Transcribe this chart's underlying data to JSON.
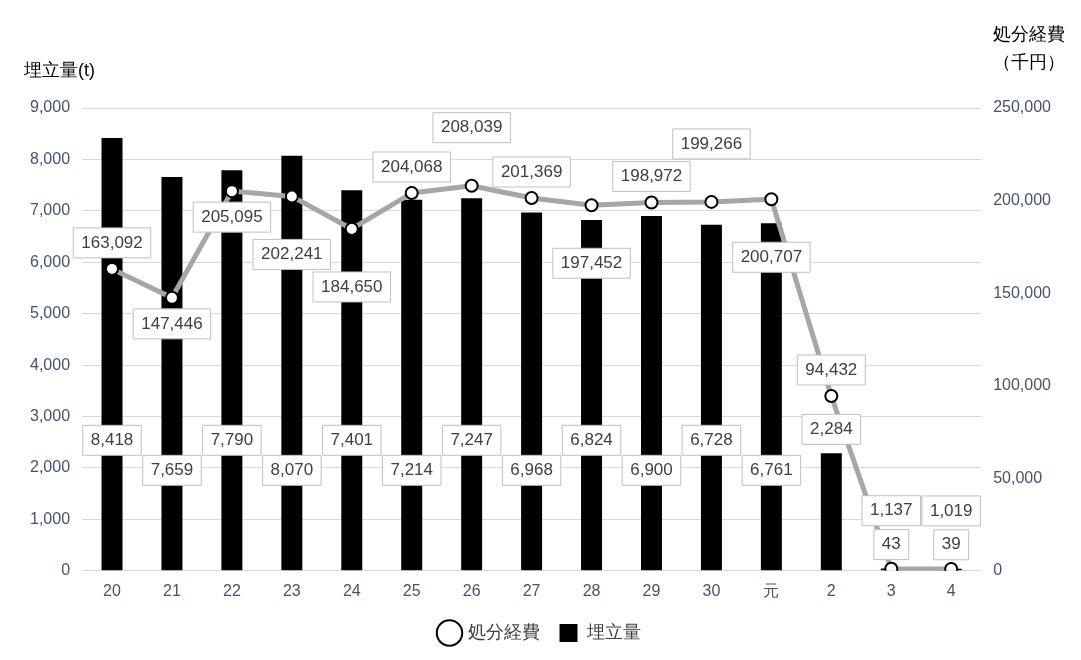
{
  "chart_data": {
    "type": "bar",
    "ylabel": "埋立量(t)",
    "y2label": "処分経費（千円）",
    "categories": [
      "20",
      "21",
      "22",
      "23",
      "24",
      "25",
      "26",
      "27",
      "28",
      "29",
      "30",
      "元",
      "2",
      "3",
      "4"
    ],
    "series": [
      {
        "name": "埋立量",
        "color": "#000000",
        "values": [
          8418,
          7659,
          7790,
          8070,
          7401,
          7214,
          7247,
          6968,
          6824,
          6900,
          6728,
          6761,
          2284,
          43,
          39
        ],
        "value_labels": [
          "8,418",
          "7,659",
          "7,790",
          "8,070",
          "7,401",
          "7,214",
          "7,247",
          "6,968",
          "6,824",
          "6,900",
          "6,728",
          "6,761",
          "2,284",
          "43",
          "39"
        ]
      },
      {
        "name": "処分経費",
        "type": "line",
        "axis": "y2",
        "color": "#a6a6a6",
        "marker": "circle",
        "values": [
          163092,
          147446,
          205095,
          202241,
          184650,
          204068,
          208039,
          201369,
          197452,
          198972,
          199266,
          200707,
          94432,
          1137,
          1019
        ],
        "value_labels": [
          "163,092",
          "147,446",
          "205,095",
          "202,241",
          "184,650",
          "204,068",
          "208,039",
          "201,369",
          "197,452",
          "198,972",
          "199,266",
          "200,707",
          "94,432",
          "1,137",
          "1,019"
        ]
      }
    ],
    "ylim": [
      0,
      9000
    ],
    "yticks": [
      0,
      {
        "value": 1000,
        "label": "1,000"
      },
      {
        "value": 2000,
        "label": "2,000"
      },
      {
        "value": 3000,
        "label": "3,000"
      },
      {
        "value": 4000,
        "label": "4,000"
      },
      {
        "value": 5000,
        "label": "5,000"
      },
      {
        "value": 6000,
        "label": "6,000"
      },
      {
        "value": 7000,
        "label": "7,000"
      },
      {
        "value": 8000,
        "label": "8,000"
      },
      {
        "value": 9000,
        "label": "9,000"
      }
    ],
    "y2lim": [
      0,
      250000
    ],
    "y2ticks": [
      0,
      {
        "value": 50000,
        "label": "50,000"
      },
      {
        "value": 100000,
        "label": "100,000"
      },
      {
        "value": 150000,
        "label": "150,000"
      },
      {
        "value": 200000,
        "label": "200,000"
      },
      {
        "value": 250000,
        "label": "250,000"
      }
    ],
    "grid": "y",
    "legend": "bottom"
  }
}
